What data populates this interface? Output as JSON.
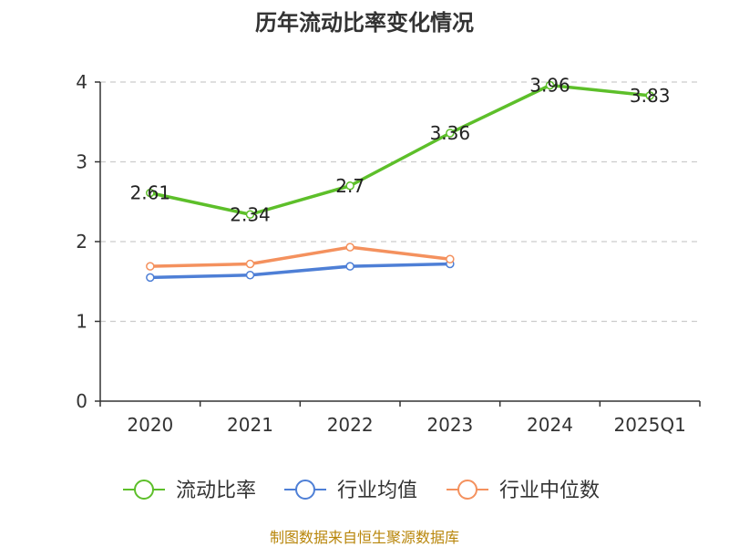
{
  "chart_data": {
    "type": "line",
    "title": "历年流动比率变化情况",
    "categories": [
      "2020",
      "2021",
      "2022",
      "2023",
      "2024",
      "2025Q1"
    ],
    "ylim": [
      0,
      4
    ],
    "yticks": [
      0,
      1,
      2,
      3,
      4
    ],
    "grid": true,
    "legend_position": "bottom",
    "series": [
      {
        "name": "流动比率",
        "color": "#5dbf2a",
        "values": [
          2.61,
          2.34,
          2.7,
          3.36,
          3.96,
          3.83
        ],
        "show_labels": true
      },
      {
        "name": "行业均值",
        "color": "#4e7fd6",
        "values": [
          1.55,
          1.58,
          1.69,
          1.72,
          null,
          null
        ],
        "show_labels": false
      },
      {
        "name": "行业中位数",
        "color": "#f4915e",
        "values": [
          1.69,
          1.72,
          1.93,
          1.78,
          null,
          null
        ],
        "show_labels": false
      }
    ],
    "source": "制图数据来自恒生聚源数据库"
  }
}
